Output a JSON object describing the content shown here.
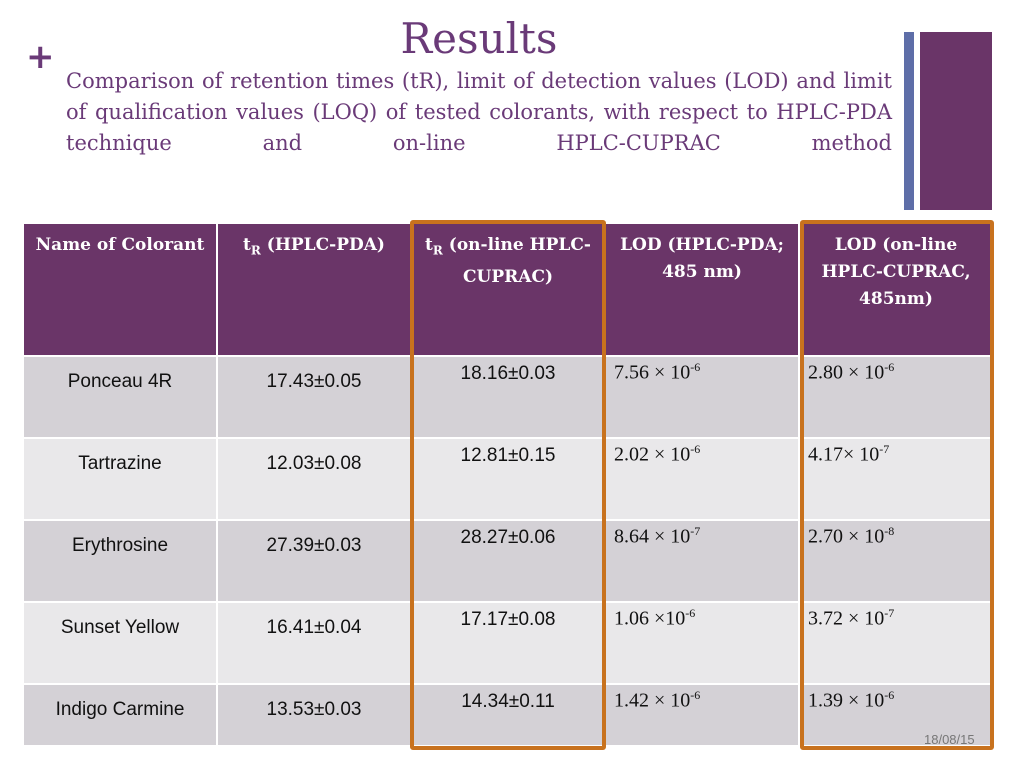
{
  "slide": {
    "title": "Results",
    "subtitle": "Comparison of retention times (tR), limit of detection values (LOD) and limit of qualification values (LOQ) of tested colorants, with respect to HPLC-PDA technique and on-line HPLC-CUPRAC method",
    "date": "18/08/15",
    "accent_color": "#6a3568",
    "highlight_color": "#c8721e",
    "bullet_icon": "plus-icon"
  },
  "table": {
    "headers": {
      "name": "Name of Colorant",
      "tr_pda_sym": "t",
      "tr_pda_sub": "R",
      "tr_pda_rest": " (HPLC-PDA)",
      "tr_cuprac_sym": "t",
      "tr_cuprac_sub": "R",
      "tr_cuprac_rest": " (on-line HPLC-CUPRAC)",
      "lod_pda": "LOD (HPLC-PDA; 485 nm)",
      "lod_cuprac": "LOD (on-line HPLC-CUPRAC, 485nm)"
    },
    "rows": [
      {
        "name": "Ponceau 4R",
        "tr_pda": "17.43±0.05",
        "tr_cuprac": "18.16±0.03",
        "lod_pda_base": "7.56 × 10",
        "lod_pda_exp": "-6",
        "lod_cuprac_base": "2.80 × 10",
        "lod_cuprac_exp": "-6"
      },
      {
        "name": "Tartrazine",
        "tr_pda": "12.03±0.08",
        "tr_cuprac": "12.81±0.15",
        "lod_pda_base": "2.02 × 10",
        "lod_pda_exp": "-6",
        "lod_cuprac_base": "4.17× 10",
        "lod_cuprac_exp": "-7"
      },
      {
        "name": "Erythrosine",
        "tr_pda": "27.39±0.03",
        "tr_cuprac": "28.27±0.06",
        "lod_pda_base": "8.64 × 10",
        "lod_pda_exp": "-7",
        "lod_cuprac_base": "2.70 × 10",
        "lod_cuprac_exp": "-8"
      },
      {
        "name": "Sunset Yellow",
        "tr_pda": "16.41±0.04",
        "tr_cuprac": "17.17±0.08",
        "lod_pda_base": "1.06 ×10",
        "lod_pda_exp": "-6",
        "lod_cuprac_base": "3.72 × 10",
        "lod_cuprac_exp": "-7"
      },
      {
        "name": "Indigo Carmine",
        "tr_pda": "13.53±0.03",
        "tr_cuprac": "14.34±0.11",
        "lod_pda_base": "1.42 × 10",
        "lod_pda_exp": "-6",
        "lod_cuprac_base": "1.39 × 10",
        "lod_cuprac_exp": "-6"
      }
    ]
  }
}
